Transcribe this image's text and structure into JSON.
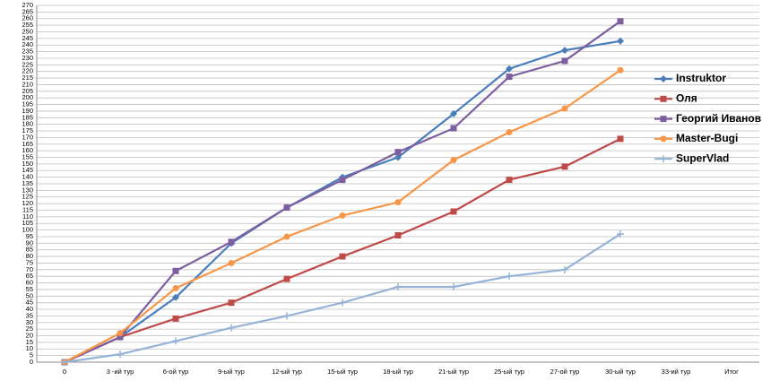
{
  "chart_data": {
    "type": "line",
    "categories": [
      "0",
      "3 -ий тур",
      "6-ой тур",
      "9-ый тур",
      "12-ый тур",
      "15-ый тур",
      "18-ый тур",
      "21-ый тур",
      "25-ый тур",
      "27-ой тур",
      "30-ый тур",
      "33-ий тур",
      "Итог"
    ],
    "series": [
      {
        "name": "Instruktor",
        "color": "#4a7ebb",
        "marker": "diamond",
        "values": [
          0,
          19,
          49,
          90,
          117,
          140,
          155,
          188,
          222,
          236,
          243,
          null,
          null
        ]
      },
      {
        "name": "Оля",
        "color": "#be4b48",
        "marker": "square",
        "values": [
          0,
          19,
          33,
          45,
          63,
          80,
          96,
          114,
          138,
          148,
          169,
          null,
          null
        ]
      },
      {
        "name": "Георгий Иванов",
        "color": "#7d5fa0",
        "marker": "square",
        "values": [
          0,
          19,
          69,
          91,
          117,
          138,
          159,
          177,
          216,
          228,
          258,
          null,
          null
        ]
      },
      {
        "name": "Master-Bugi",
        "color": "#f79646",
        "marker": "circle",
        "values": [
          0,
          22,
          56,
          75,
          95,
          111,
          121,
          153,
          174,
          192,
          221,
          null,
          null
        ]
      },
      {
        "name": "SuperVlad",
        "color": "#94b3d6",
        "marker": "plus",
        "values": [
          0,
          6,
          16,
          26,
          35,
          45,
          57,
          57,
          65,
          70,
          97,
          null,
          null
        ]
      }
    ],
    "ylim": [
      0,
      270
    ],
    "yticks": [
      0,
      5,
      10,
      15,
      20,
      25,
      30,
      35,
      40,
      45,
      50,
      55,
      60,
      65,
      70,
      75,
      80,
      85,
      90,
      95,
      100,
      105,
      110,
      115,
      120,
      125,
      130,
      135,
      140,
      145,
      150,
      155,
      160,
      165,
      170,
      175,
      180,
      185,
      190,
      195,
      200,
      205,
      210,
      215,
      220,
      225,
      230,
      235,
      240,
      245,
      250,
      255,
      260,
      265,
      270
    ],
    "grid": true,
    "legend": "right"
  }
}
